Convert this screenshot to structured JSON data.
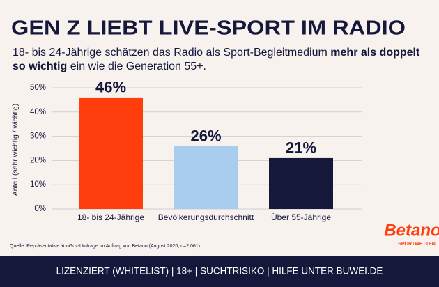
{
  "chart_data": {
    "type": "bar",
    "title": "GEN Z LIEBT LIVE-SPORT IM RADIO",
    "subtitle": [
      [
        {
          "text": "18- bis 24-Jährige schätzen das Radio als Sport-Begleitmedium",
          "bold": false
        },
        {
          "text": "mehr als doppelt",
          "bold": true
        }
      ],
      [
        {
          "text": "so wichtig",
          "bold": true
        },
        {
          "text": "ein wie die Generation 55+.",
          "bold": false
        }
      ]
    ],
    "y_label": "Anteil (sehr wichtig / wichtig)",
    "categories": [
      "18- bis 24-Jährige",
      "Bevölkerungsdurchschnitt",
      "Über 55-Jährige"
    ],
    "values": [
      46,
      26,
      21
    ],
    "value_labels": [
      "46%",
      "26%",
      "21%"
    ],
    "colors": [
      "#ff3d0d",
      "#a9cdef",
      "#15173b"
    ],
    "ylim": [
      0,
      50
    ],
    "yticks": [
      {
        "value": 0,
        "label": "0%"
      },
      {
        "value": 10,
        "label": "10%"
      },
      {
        "value": 20,
        "label": "20%"
      },
      {
        "value": 30,
        "label": "30%"
      },
      {
        "value": 40,
        "label": "40%"
      },
      {
        "value": 50,
        "label": "50%"
      }
    ],
    "grid": true,
    "source": "Quelle: Repräsentative YouGov-Umfrage im Auftrag von Betano (August 2026, n=2.061)."
  },
  "brand": {
    "name": "Betano",
    "tagline": "SPORTWETTEN"
  },
  "footer": "LIZENZIERT (WHITELIST) | 18+ | SUCHTRISIKO | HILFE UNTER BUWEI.DE"
}
